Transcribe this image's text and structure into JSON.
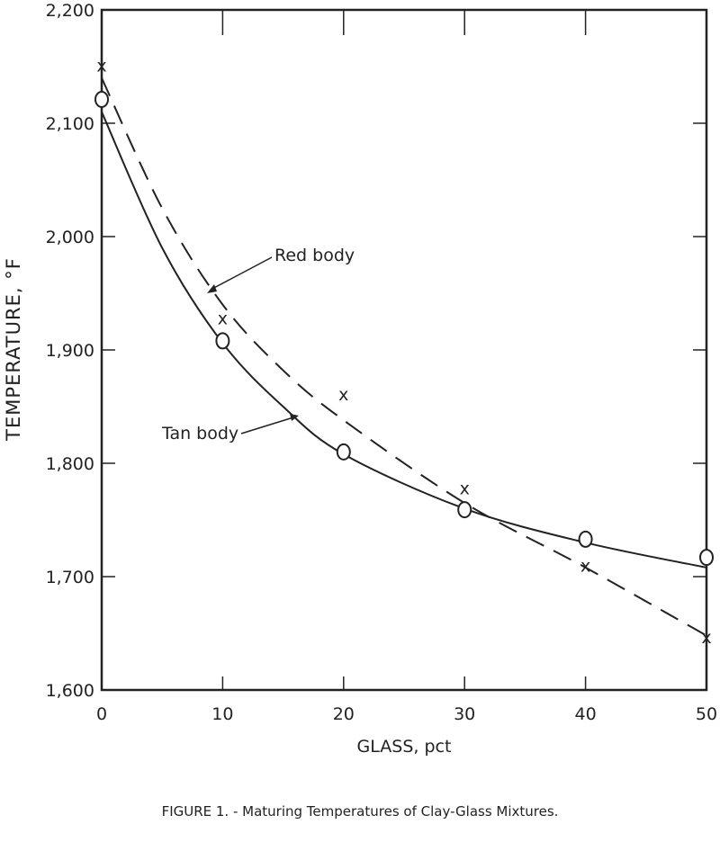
{
  "chart_data": {
    "type": "line",
    "title": "",
    "caption": "FIGURE 1. - Maturing Temperatures of Clay-Glass Mixtures.",
    "xlabel": "GLASS, pct",
    "ylabel": "TEMPERATURE, °F",
    "xlim": [
      0,
      50
    ],
    "ylim": [
      1600,
      2200
    ],
    "xticks": [
      0,
      10,
      20,
      30,
      40,
      50
    ],
    "xtick_labels": [
      "0",
      "10",
      "20",
      "30",
      "40",
      "50"
    ],
    "yticks": [
      1600,
      1700,
      1800,
      1900,
      2000,
      2100,
      2200
    ],
    "ytick_labels": [
      "1,600",
      "1,700",
      "1,800",
      "1,900",
      "2,000",
      "2,100",
      "2,200"
    ],
    "grid": false,
    "series": [
      {
        "name": "Tan body",
        "marker": "circle",
        "line": "solid",
        "x": [
          0,
          10,
          20,
          30,
          40,
          50
        ],
        "values": [
          2121,
          1908,
          1810,
          1759,
          1733,
          1717
        ],
        "curve": [
          [
            0,
            2110
          ],
          [
            5,
            1990
          ],
          [
            10,
            1906
          ],
          [
            15,
            1850
          ],
          [
            20,
            1808
          ],
          [
            30,
            1760
          ],
          [
            40,
            1730
          ],
          [
            50,
            1708
          ]
        ]
      },
      {
        "name": "Red body",
        "marker": "x",
        "line": "dashed",
        "x": [
          0,
          10,
          20,
          30,
          40,
          50
        ],
        "values": [
          2151,
          1928,
          1861,
          1778,
          1710,
          1647
        ],
        "curve": [
          [
            0,
            2140
          ],
          [
            5,
            2025
          ],
          [
            10,
            1940
          ],
          [
            15,
            1882
          ],
          [
            20,
            1838
          ],
          [
            30,
            1765
          ],
          [
            40,
            1708
          ],
          [
            50,
            1648
          ]
        ]
      }
    ],
    "annotations": [
      {
        "text": "Red body",
        "series": "Red body"
      },
      {
        "text": "Tan body",
        "series": "Tan body"
      }
    ]
  }
}
